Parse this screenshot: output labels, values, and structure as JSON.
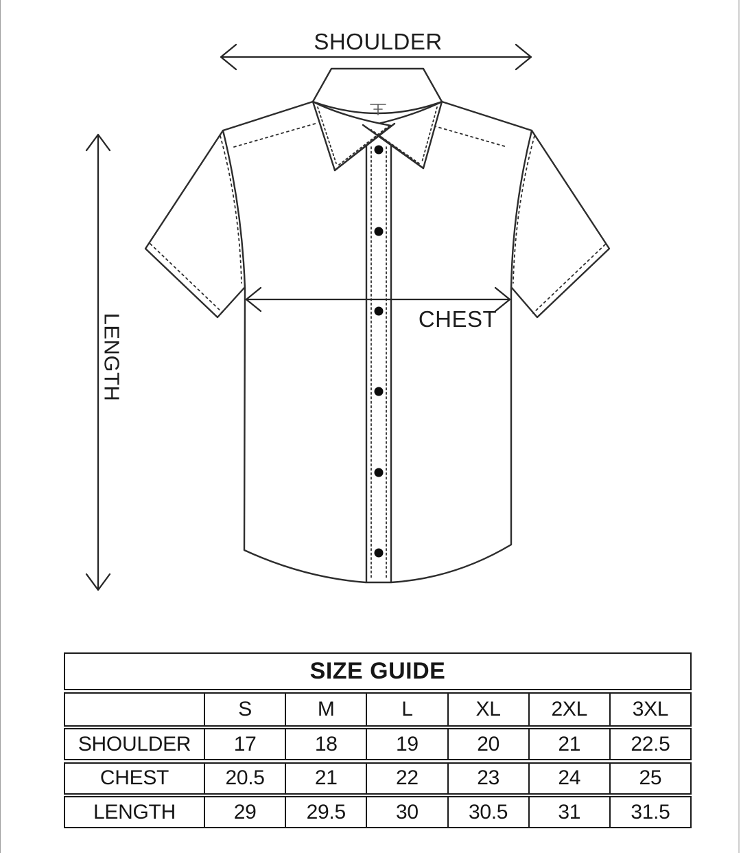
{
  "diagram": {
    "shoulder_label": "SHOULDER",
    "chest_label": "CHEST",
    "length_label": "LENGTH"
  },
  "size_guide": {
    "title": "SIZE GUIDE",
    "size_columns": [
      "S",
      "M",
      "L",
      "XL",
      "2XL",
      "3XL"
    ],
    "rows": [
      {
        "label": "SHOULDER",
        "values": [
          "17",
          "18",
          "19",
          "20",
          "21",
          "22.5"
        ]
      },
      {
        "label": "CHEST",
        "values": [
          "20.5",
          "21",
          "22",
          "23",
          "24",
          "25"
        ]
      },
      {
        "label": "LENGTH",
        "values": [
          "29",
          "29.5",
          "30",
          "30.5",
          "31",
          "31.5"
        ]
      }
    ]
  },
  "colors": {
    "line": "#2d2d2d",
    "text": "#1d1d1d",
    "table_border": "#1a1a1a",
    "background": "#ffffff",
    "button": "#0d0d0d"
  }
}
